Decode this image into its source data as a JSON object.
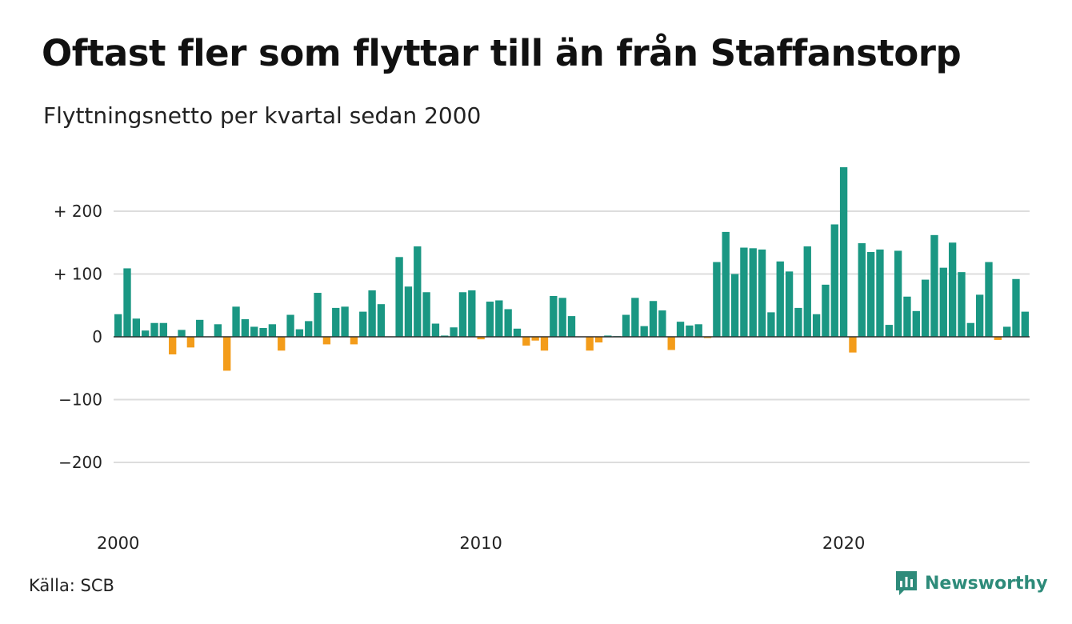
{
  "title": "Oftast fler som flyttar till än från Staffanstorp",
  "subtitle": "Flyttningsnetto per kvartal sedan 2000",
  "source": "Källa: SCB",
  "brand": "Newsworthy",
  "colors": {
    "positive": "#1a9783",
    "negative": "#f39c1a",
    "grid": "#dddddd",
    "brand": "#2e8b7a"
  },
  "chart_data": {
    "type": "bar",
    "title": "Oftast fler som flyttar till än från Staffanstorp",
    "subtitle": "Flyttningsnetto per kvartal sedan 2000",
    "x_start": "2000-Q1",
    "x_ticks": [
      "2000",
      "2010",
      "2020"
    ],
    "y_ticks": [
      -200,
      -100,
      0,
      100,
      200
    ],
    "y_tick_labels": [
      "−200",
      "−100",
      "0",
      "+ 100",
      "+ 200"
    ],
    "ylim": [
      -250,
      275
    ],
    "grid": true,
    "values": [
      36,
      109,
      29,
      10,
      22,
      22,
      -28,
      11,
      -17,
      27,
      0,
      20,
      -54,
      48,
      28,
      16,
      14,
      20,
      -22,
      35,
      12,
      25,
      70,
      -12,
      46,
      48,
      -12,
      40,
      74,
      52,
      0,
      127,
      80,
      144,
      71,
      21,
      2,
      15,
      71,
      74,
      -4,
      56,
      58,
      44,
      13,
      -14,
      -6,
      -22,
      65,
      62,
      33,
      0,
      -22,
      -9,
      2,
      1,
      35,
      62,
      17,
      57,
      42,
      -21,
      24,
      18,
      20,
      -2,
      119,
      167,
      100,
      142,
      141,
      139,
      39,
      120,
      104,
      46,
      144,
      36,
      83,
      179,
      270,
      -25,
      149,
      135,
      139,
      19,
      137,
      64,
      41,
      91,
      162,
      110,
      150,
      103,
      22,
      67,
      119,
      -5,
      16,
      92,
      40
    ]
  }
}
